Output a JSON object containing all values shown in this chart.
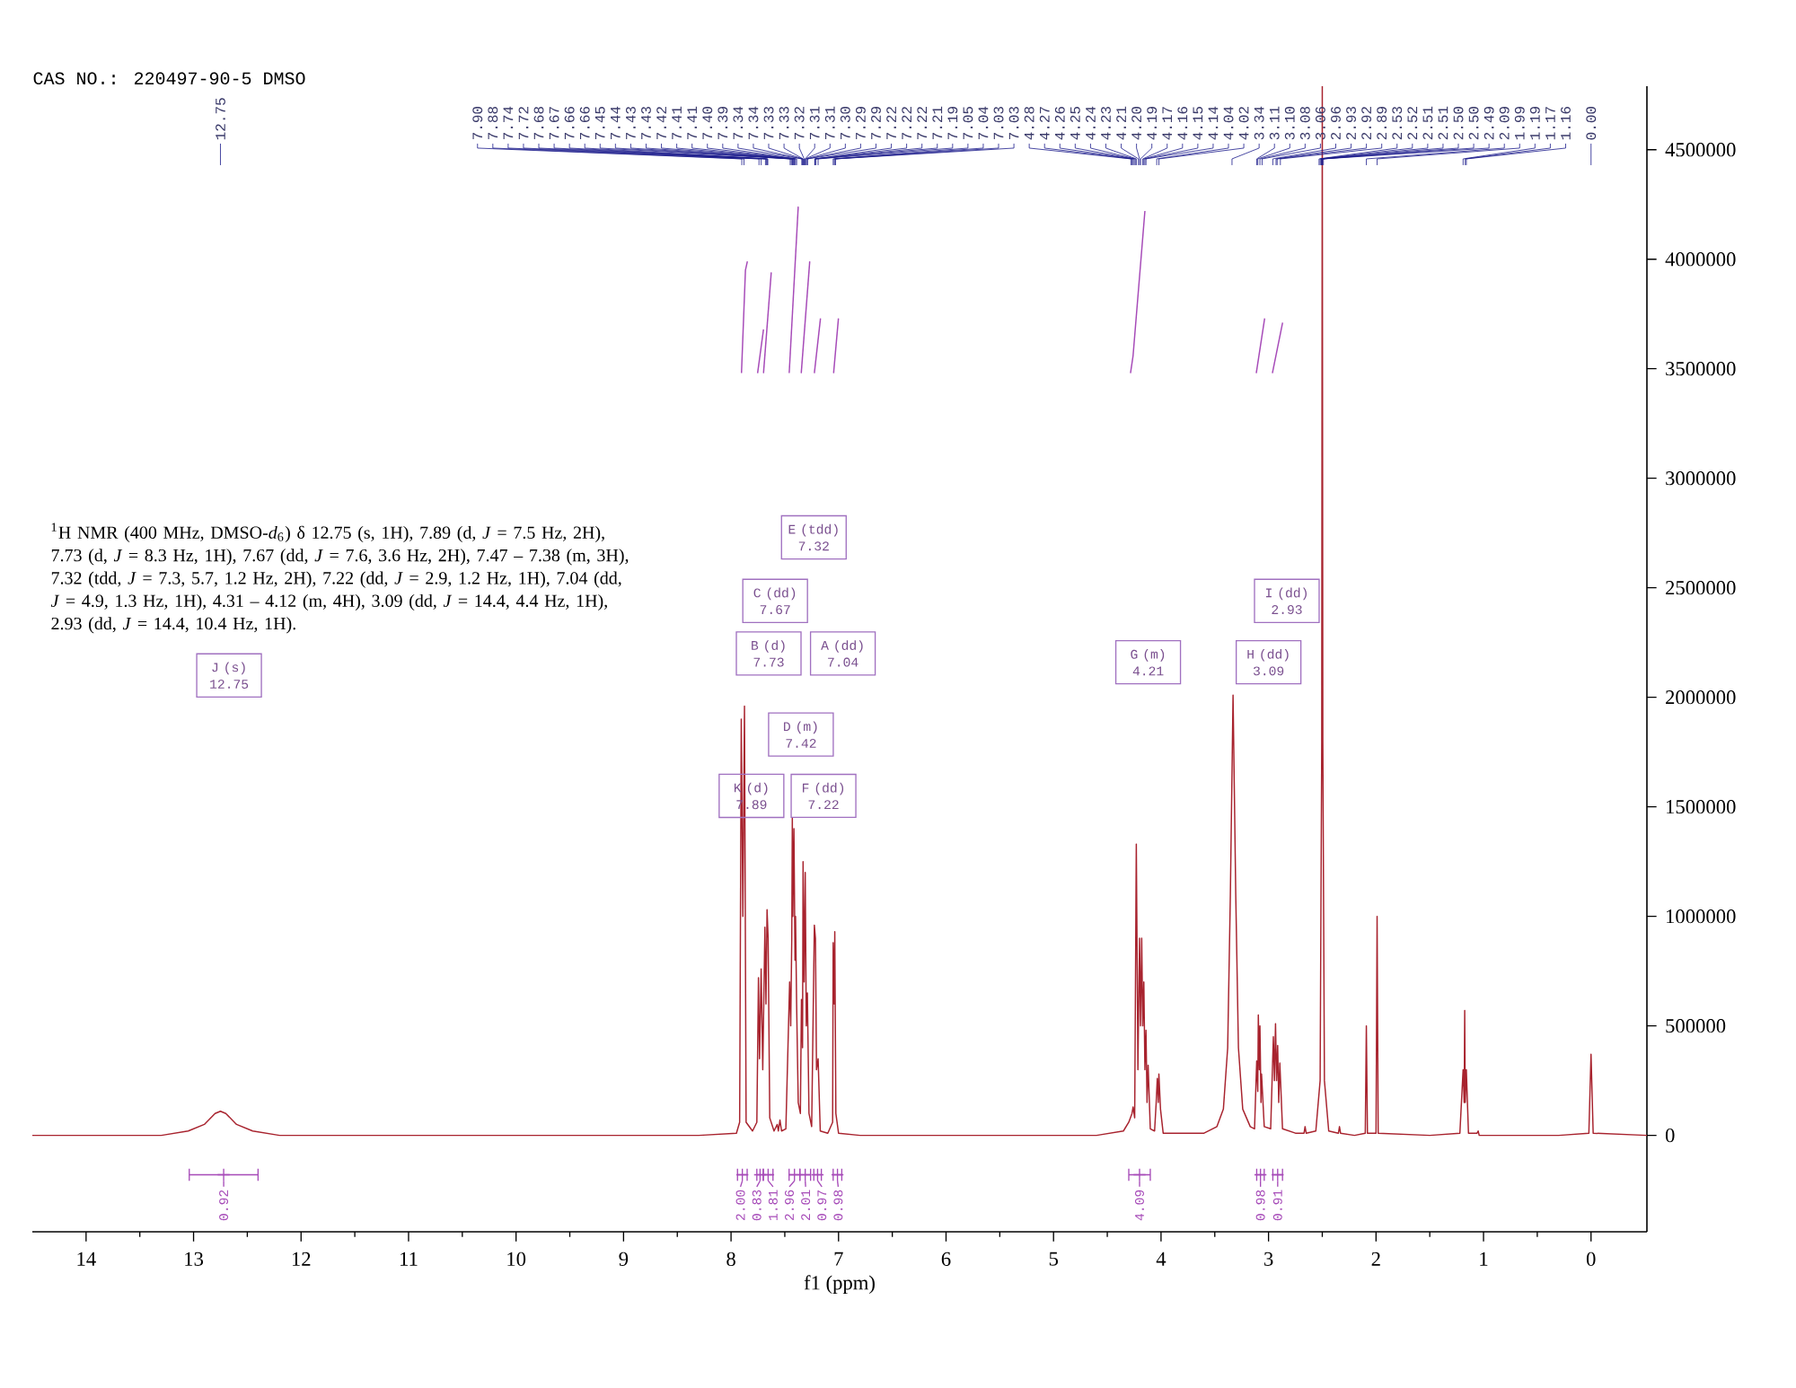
{
  "chart_data": {
    "type": "line",
    "title": "CAS NO.: 220497-90-5 DMSO",
    "xlabel": "f1 (ppm)",
    "xlim": [
      14.5,
      -0.52
    ],
    "xticks": [
      14,
      {
        "value": 13.5,
        "label": null
      },
      13,
      {
        "value": 12.5,
        "label": null
      },
      12,
      {
        "value": 11.5,
        "label": null
      },
      11,
      {
        "value": 10.5,
        "label": null
      },
      10,
      {
        "value": 9.5,
        "label": null
      },
      9,
      {
        "value": 8.5,
        "label": null
      },
      8,
      {
        "value": 7.5,
        "label": null
      },
      7,
      {
        "value": 6.5,
        "label": null
      },
      6,
      {
        "value": 5.5,
        "label": null
      },
      5,
      {
        "value": 4.5,
        "label": null
      },
      4,
      {
        "value": 3.5,
        "label": null
      },
      3,
      {
        "value": 2.5,
        "label": null
      },
      2,
      {
        "value": 1.5,
        "label": null
      },
      1,
      {
        "value": 0.5,
        "label": null
      },
      0
    ],
    "ylim": [
      -440000,
      4790000
    ],
    "yticks": [
      0,
      500000,
      1000000,
      1500000,
      2000000,
      2500000,
      3000000,
      3500000,
      4000000,
      4500000
    ],
    "series": [
      {
        "color": "#a8232e",
        "x": [
          14.5,
          13.3,
          13.05,
          12.9,
          12.8,
          12.75,
          12.7,
          12.6,
          12.45,
          12.2,
          8.3,
          7.95,
          7.92,
          7.905,
          7.89,
          7.875,
          7.86,
          7.8,
          7.76,
          7.745,
          7.735,
          7.72,
          7.705,
          7.685,
          7.675,
          7.665,
          7.655,
          7.64,
          7.6,
          7.57,
          7.56,
          7.545,
          7.53,
          7.49,
          7.455,
          7.445,
          7.435,
          7.43,
          7.425,
          7.415,
          7.405,
          7.4,
          7.39,
          7.375,
          7.355,
          7.345,
          7.335,
          7.33,
          7.32,
          7.31,
          7.3,
          7.29,
          7.275,
          7.25,
          7.225,
          7.215,
          7.205,
          7.19,
          7.17,
          7.1,
          7.055,
          7.05,
          7.04,
          7.035,
          7.025,
          7.0,
          6.8,
          4.6,
          4.35,
          4.3,
          4.27,
          4.26,
          4.245,
          4.23,
          4.215,
          4.2,
          4.19,
          4.18,
          4.17,
          4.16,
          4.15,
          4.14,
          4.13,
          4.12,
          4.1,
          4.06,
          4.045,
          4.035,
          4.025,
          4.02,
          4.005,
          3.98,
          3.6,
          3.48,
          3.42,
          3.38,
          3.355,
          3.33,
          3.305,
          3.28,
          3.24,
          3.17,
          3.13,
          3.11,
          3.1,
          3.095,
          3.085,
          3.08,
          3.07,
          3.065,
          3.04,
          2.98,
          2.955,
          2.945,
          2.935,
          2.925,
          2.915,
          2.905,
          2.895,
          2.87,
          2.75,
          2.67,
          2.66,
          2.65,
          2.56,
          2.52,
          2.505,
          2.5,
          2.495,
          2.48,
          2.44,
          2.35,
          2.34,
          2.33,
          2.2,
          2.1,
          2.09,
          2.08,
          2.0,
          1.99,
          1.98,
          1.5,
          1.22,
          1.19,
          1.18,
          1.175,
          1.17,
          1.16,
          1.14,
          1.06,
          1.05,
          1.04,
          0.3,
          0.02,
          0.0,
          -0.02,
          -0.52
        ],
        "values": [
          0,
          0,
          20000,
          50000,
          100000,
          110000,
          100000,
          50000,
          20000,
          0,
          0,
          10000,
          60000,
          1900000,
          1000000,
          1960000,
          60000,
          20000,
          60000,
          720000,
          350000,
          760000,
          300000,
          950000,
          600000,
          1030000,
          900000,
          80000,
          20000,
          50000,
          20000,
          70000,
          20000,
          30000,
          700000,
          500000,
          900000,
          1450000,
          1000000,
          1400000,
          800000,
          1000000,
          600000,
          150000,
          100000,
          620000,
          400000,
          1250000,
          700000,
          1200000,
          500000,
          650000,
          100000,
          40000,
          960000,
          900000,
          300000,
          350000,
          20000,
          10000,
          60000,
          880000,
          600000,
          930000,
          100000,
          10000,
          0,
          0,
          20000,
          60000,
          100000,
          130000,
          80000,
          1330000,
          300000,
          900000,
          500000,
          900000,
          500000,
          700000,
          300000,
          480000,
          150000,
          320000,
          30000,
          20000,
          150000,
          260000,
          150000,
          280000,
          120000,
          10000,
          10000,
          40000,
          120000,
          400000,
          1100000,
          2010000,
          1100000,
          400000,
          120000,
          40000,
          30000,
          340000,
          200000,
          550000,
          300000,
          500000,
          150000,
          280000,
          40000,
          30000,
          450000,
          250000,
          510000,
          250000,
          410000,
          150000,
          330000,
          30000,
          10000,
          10000,
          40000,
          10000,
          20000,
          250000,
          1800000,
          4790000,
          1800000,
          250000,
          20000,
          10000,
          40000,
          10000,
          0,
          10000,
          500000,
          10000,
          10000,
          1000000,
          10000,
          0,
          10000,
          300000,
          150000,
          570000,
          150000,
          300000,
          10000,
          10000,
          20000,
          0,
          0,
          10000,
          370000,
          10000,
          0
        ]
      },
      {
        "color": "#a64ab8",
        "x": [
          7.903,
          7.866,
          7.848
        ],
        "values": [
          3480000,
          3950000,
          3990000
        ]
      },
      {
        "color": "#a64ab8",
        "x": [
          7.753,
          7.698
        ],
        "values": [
          3480000,
          3680000
        ]
      },
      {
        "color": "#a64ab8",
        "x": [
          7.698,
          7.626
        ],
        "values": [
          3480000,
          3940000
        ]
      },
      {
        "color": "#a64ab8",
        "x": [
          7.459,
          7.375
        ],
        "values": [
          3480000,
          4240000
        ]
      },
      {
        "color": "#a64ab8",
        "x": [
          7.347,
          7.268
        ],
        "values": [
          3480000,
          3990000
        ]
      },
      {
        "color": "#a64ab8",
        "x": [
          7.225,
          7.168
        ],
        "values": [
          3480000,
          3730000
        ]
      },
      {
        "color": "#a64ab8",
        "x": [
          7.046,
          7.001
        ],
        "values": [
          3480000,
          3730000
        ]
      },
      {
        "color": "#a64ab8",
        "x": [
          4.284,
          4.26,
          4.15
        ],
        "values": [
          3480000,
          3560000,
          4220000
        ]
      },
      {
        "color": "#a64ab8",
        "x": [
          3.114,
          3.036
        ],
        "values": [
          3480000,
          3730000
        ]
      },
      {
        "color": "#a64ab8",
        "x": [
          2.964,
          2.869
        ],
        "values": [
          3480000,
          3710000
        ]
      },
      {
        "type": "scatter",
        "marker": "cross",
        "color": "#a64ab8",
        "x": [
          12.72,
          7.895,
          7.73,
          7.655,
          7.41,
          7.31,
          7.195,
          7.01,
          4.2,
          3.075,
          2.915
        ],
        "values": [
          -180000,
          -180000,
          -180000,
          -180000,
          -180000,
          -180000,
          -180000,
          -180000,
          -180000,
          -180000,
          -180000
        ],
        "xerrors": [
          [
            12.4,
            13.04
          ],
          [
            7.85,
            7.94
          ],
          [
            7.7,
            7.76
          ],
          [
            7.61,
            7.7
          ],
          [
            7.36,
            7.46
          ],
          [
            7.26,
            7.36
          ],
          [
            7.16,
            7.23
          ],
          [
            6.97,
            7.05
          ],
          [
            4.1,
            4.3
          ],
          [
            3.04,
            3.11
          ],
          [
            2.87,
            2.96
          ]
        ]
      }
    ],
    "annotations": [
      "$^{1}$H NMR (400 MHz, DMSO-*d*$_{6}$) δ 12.75 (s, 1H), 7.89 (d, *J* = 7.5 Hz, 2H), 7.73 (d, *J* = 8.3 Hz, 1H), 7.67 (dd, *J* = 7.6, 3.6 Hz, 2H), 7.47 – 7.38 (m, 3H), 7.32 (tdd, *J* = 7.3, 5.7, 1.2 Hz, 2H), 7.22 (dd, *J* = 2.9, 1.2 Hz, 1H), 7.04 (dd, *J* = 4.9, 1.3 Hz, 1H), 4.31 – 4.12 (m, 4H), 3.09 (dd, *J* = 14.4, 4.4 Hz, 1H), 2.93 (dd, *J* = 14.4, 10.4 Hz, 1H).",
      {
        "text": "J (s) 12.75",
        "x": 12.67,
        "y": 2100000
      },
      {
        "text": "E (tdd) 7.32",
        "x": 7.23,
        "y": 2730000
      },
      {
        "text": "C (dd) 7.67",
        "x": 7.59,
        "y": 2440000
      },
      {
        "text": "B (d) 7.73",
        "x": 7.65,
        "y": 2200000
      },
      {
        "text": "A (dd) 7.04",
        "x": 6.96,
        "y": 2200000
      },
      {
        "text": "D (m) 7.42",
        "x": 7.35,
        "y": 1830000
      },
      {
        "text": "K (d) 7.89",
        "x": 7.81,
        "y": 1550000
      },
      {
        "text": "F (dd) 7.22",
        "x": 7.14,
        "y": 1550000
      },
      {
        "text": "G (m) 4.21",
        "x": 4.12,
        "y": 2160000
      },
      {
        "text": "H (dd) 3.09",
        "x": 3.0,
        "y": 2160000
      },
      {
        "text": "I (dd) 2.93",
        "x": 2.83,
        "y": 2440000
      },
      {
        "text": "0.92",
        "x": 12.72,
        "y": -180000
      },
      {
        "text": "2.00",
        "x": 7.895,
        "y": -180000
      },
      {
        "text": "0.83",
        "x": 7.73,
        "y": -180000
      },
      {
        "text": "1.81",
        "x": 7.655,
        "y": -180000
      },
      {
        "text": "2.96",
        "x": 7.41,
        "y": -180000
      },
      {
        "text": "2.01",
        "x": 7.31,
        "y": -180000
      },
      {
        "text": "0.97",
        "x": 7.195,
        "y": -180000
      },
      {
        "text": "0.98",
        "x": 7.01,
        "y": -180000
      },
      {
        "text": "4.09",
        "x": 4.2,
        "y": -180000
      },
      {
        "text": "0.98",
        "x": 3.075,
        "y": -180000
      },
      {
        "text": "0.91",
        "x": 2.915,
        "y": -180000
      },
      {
        "text": "12.75",
        "x": 12.75
      },
      {
        "text": "7.90",
        "x": 7.9
      },
      {
        "text": "7.88",
        "x": 7.88
      },
      {
        "text": "7.74",
        "x": 7.74
      },
      {
        "text": "7.72",
        "x": 7.72
      },
      {
        "text": "7.68",
        "x": 7.68
      },
      {
        "text": "7.67",
        "x": 7.67
      },
      {
        "text": "7.66",
        "x": 7.66
      },
      {
        "text": "7.66",
        "x": 7.66
      },
      {
        "text": "7.45",
        "x": 7.45
      },
      {
        "text": "7.44",
        "x": 7.44
      },
      {
        "text": "7.43",
        "x": 7.43
      },
      {
        "text": "7.43",
        "x": 7.43
      },
      {
        "text": "7.42",
        "x": 7.42
      },
      {
        "text": "7.41",
        "x": 7.41
      },
      {
        "text": "7.41",
        "x": 7.41
      },
      {
        "text": "7.40",
        "x": 7.4
      },
      {
        "text": "7.39",
        "x": 7.39
      },
      {
        "text": "7.34",
        "x": 7.34
      },
      {
        "text": "7.34",
        "x": 7.34
      },
      {
        "text": "7.33",
        "x": 7.33
      },
      {
        "text": "7.33",
        "x": 7.33
      },
      {
        "text": "7.32",
        "x": 7.32
      },
      {
        "text": "7.31",
        "x": 7.31
      },
      {
        "text": "7.31",
        "x": 7.31
      },
      {
        "text": "7.30",
        "x": 7.3
      },
      {
        "text": "7.29",
        "x": 7.29
      },
      {
        "text": "7.29",
        "x": 7.29
      },
      {
        "text": "7.22",
        "x": 7.22
      },
      {
        "text": "7.22",
        "x": 7.22
      },
      {
        "text": "7.22",
        "x": 7.22
      },
      {
        "text": "7.21",
        "x": 7.21
      },
      {
        "text": "7.19",
        "x": 7.19
      },
      {
        "text": "7.05",
        "x": 7.05
      },
      {
        "text": "7.04",
        "x": 7.04
      },
      {
        "text": "7.03",
        "x": 7.03
      },
      {
        "text": "7.03",
        "x": 7.03
      },
      {
        "text": "4.28",
        "x": 4.28
      },
      {
        "text": "4.27",
        "x": 4.27
      },
      {
        "text": "4.26",
        "x": 4.26
      },
      {
        "text": "4.25",
        "x": 4.25
      },
      {
        "text": "4.24",
        "x": 4.24
      },
      {
        "text": "4.23",
        "x": 4.23
      },
      {
        "text": "4.21",
        "x": 4.21
      },
      {
        "text": "4.20",
        "x": 4.2
      },
      {
        "text": "4.19",
        "x": 4.19
      },
      {
        "text": "4.17",
        "x": 4.17
      },
      {
        "text": "4.16",
        "x": 4.16
      },
      {
        "text": "4.15",
        "x": 4.15
      },
      {
        "text": "4.14",
        "x": 4.14
      },
      {
        "text": "4.04",
        "x": 4.04
      },
      {
        "text": "4.02",
        "x": 4.02
      },
      {
        "text": "3.34",
        "x": 3.34
      },
      {
        "text": "3.11",
        "x": 3.11
      },
      {
        "text": "3.10",
        "x": 3.1
      },
      {
        "text": "3.08",
        "x": 3.08
      },
      {
        "text": "3.06",
        "x": 3.06
      },
      {
        "text": "2.96",
        "x": 2.96
      },
      {
        "text": "2.93",
        "x": 2.93
      },
      {
        "text": "2.92",
        "x": 2.92
      },
      {
        "text": "2.89",
        "x": 2.89
      },
      {
        "text": "2.53",
        "x": 2.53
      },
      {
        "text": "2.52",
        "x": 2.52
      },
      {
        "text": "2.51",
        "x": 2.51
      },
      {
        "text": "2.51",
        "x": 2.51
      },
      {
        "text": "2.50",
        "x": 2.5
      },
      {
        "text": "2.50",
        "x": 2.5
      },
      {
        "text": "2.49",
        "x": 2.49
      },
      {
        "text": "2.09",
        "x": 2.09
      },
      {
        "text": "1.99",
        "x": 1.99
      },
      {
        "text": "1.19",
        "x": 1.19
      },
      {
        "text": "1.17",
        "x": 1.17
      },
      {
        "text": "1.16",
        "x": 1.16
      },
      {
        "text": "0.00",
        "x": 0.0
      }
    ]
  }
}
